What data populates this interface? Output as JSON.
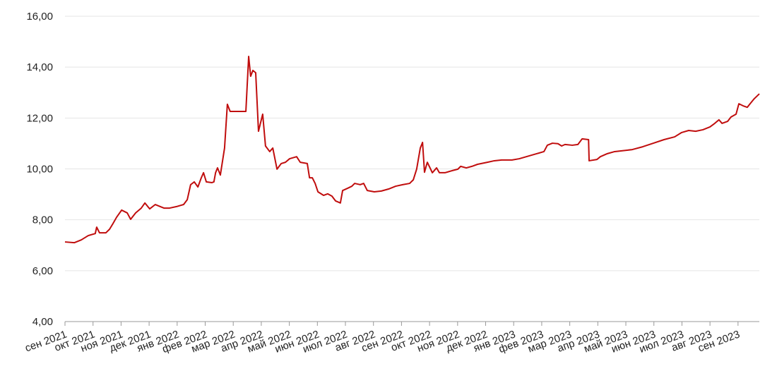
{
  "chart_data": {
    "type": "line",
    "series": [
      {
        "color": "#c00d0d",
        "x": [
          0,
          0.33,
          0.58,
          0.83,
          1.08,
          1.13,
          1.23,
          1.46,
          1.59,
          1.71,
          1.84,
          2.02,
          2.22,
          2.34,
          2.52,
          2.72,
          2.85,
          3.02,
          3.22,
          3.35,
          3.53,
          3.73,
          3.98,
          4.23,
          4.36,
          4.48,
          4.61,
          4.74,
          4.86,
          4.94,
          5.04,
          5.24,
          5.31,
          5.37,
          5.44,
          5.54,
          5.69,
          5.79,
          5.89,
          6.45,
          6.55,
          6.62,
          6.7,
          6.8,
          6.9,
          7.05,
          7.15,
          7.3,
          7.41,
          7.56,
          7.71,
          7.86,
          8.01,
          8.26,
          8.39,
          8.64,
          8.72,
          8.82,
          8.92,
          9.02,
          9.22,
          9.37,
          9.52,
          9.65,
          9.82,
          9.9,
          10.08,
          10.23,
          10.33,
          10.53,
          10.65,
          10.78,
          11.03,
          11.28,
          11.54,
          11.79,
          12.04,
          12.29,
          12.42,
          12.54,
          12.67,
          12.75,
          12.82,
          12.92,
          13.1,
          13.25,
          13.35,
          13.55,
          13.8,
          14.01,
          14.11,
          14.31,
          14.51,
          14.71,
          15.06,
          15.31,
          15.57,
          15.94,
          16.2,
          16.45,
          16.83,
          17.08,
          17.2,
          17.38,
          17.58,
          17.71,
          17.83,
          18.09,
          18.29,
          18.44,
          18.67,
          18.69,
          18.97,
          19.09,
          19.34,
          19.6,
          19.85,
          20.23,
          20.6,
          20.98,
          21.36,
          21.74,
          21.99,
          22.24,
          22.49,
          22.75,
          23.0,
          23.17,
          23.32,
          23.43,
          23.63,
          23.75,
          23.93,
          24.03,
          24.18,
          24.33,
          24.43,
          24.58,
          24.76
        ],
        "values": [
          7.13,
          7.1,
          7.21,
          7.38,
          7.46,
          7.71,
          7.49,
          7.49,
          7.63,
          7.85,
          8.1,
          8.38,
          8.27,
          8.02,
          8.27,
          8.46,
          8.66,
          8.43,
          8.6,
          8.54,
          8.46,
          8.46,
          8.52,
          8.6,
          8.79,
          9.38,
          9.49,
          9.29,
          9.65,
          9.85,
          9.49,
          9.46,
          9.49,
          9.85,
          10.04,
          9.76,
          10.82,
          12.54,
          12.26,
          12.26,
          14.42,
          13.64,
          13.87,
          13.78,
          11.48,
          12.15,
          10.9,
          10.68,
          10.82,
          9.99,
          10.21,
          10.26,
          10.4,
          10.48,
          10.26,
          10.21,
          9.65,
          9.65,
          9.43,
          9.1,
          8.96,
          9.02,
          8.93,
          8.74,
          8.66,
          9.15,
          9.24,
          9.32,
          9.43,
          9.38,
          9.43,
          9.15,
          9.1,
          9.13,
          9.21,
          9.32,
          9.38,
          9.43,
          9.57,
          9.99,
          10.82,
          11.04,
          9.87,
          10.26,
          9.85,
          10.04,
          9.85,
          9.85,
          9.93,
          9.99,
          10.1,
          10.04,
          10.1,
          10.18,
          10.26,
          10.32,
          10.35,
          10.35,
          10.4,
          10.48,
          10.6,
          10.68,
          10.93,
          11.01,
          10.99,
          10.9,
          10.96,
          10.93,
          10.96,
          11.18,
          11.15,
          10.32,
          10.37,
          10.48,
          10.6,
          10.68,
          10.71,
          10.76,
          10.87,
          11.01,
          11.15,
          11.26,
          11.43,
          11.51,
          11.48,
          11.54,
          11.65,
          11.79,
          11.93,
          11.79,
          11.87,
          12.04,
          12.15,
          12.56,
          12.48,
          12.42,
          12.56,
          12.76,
          12.95
        ]
      }
    ],
    "xlim": [
      0,
      24.76
    ],
    "xticks": [
      {
        "value": 0,
        "label": "сен 2021"
      },
      {
        "value": 1,
        "label": "окт 2021"
      },
      {
        "value": 2,
        "label": "ноя 2021"
      },
      {
        "value": 3,
        "label": "дек 2021"
      },
      {
        "value": 4,
        "label": "янв 2022"
      },
      {
        "value": 5,
        "label": "фев 2022"
      },
      {
        "value": 6,
        "label": "мар 2022"
      },
      {
        "value": 7,
        "label": "апр 2022"
      },
      {
        "value": 8,
        "label": "май 2022"
      },
      {
        "value": 9,
        "label": "июн 2022"
      },
      {
        "value": 10,
        "label": "июл 2022"
      },
      {
        "value": 11,
        "label": "авг 2022"
      },
      {
        "value": 12,
        "label": "сен 2022"
      },
      {
        "value": 13,
        "label": "окт 2022"
      },
      {
        "value": 14,
        "label": "ноя 2022"
      },
      {
        "value": 15,
        "label": "дек 2022"
      },
      {
        "value": 16,
        "label": "янв 2023"
      },
      {
        "value": 17,
        "label": "фев 2023"
      },
      {
        "value": 18,
        "label": "мар 2023"
      },
      {
        "value": 19,
        "label": "апр 2023"
      },
      {
        "value": 20,
        "label": "май 2023"
      },
      {
        "value": 21,
        "label": "июн 2023"
      },
      {
        "value": 22,
        "label": "июл 2023"
      },
      {
        "value": 23,
        "label": "авг 2023"
      },
      {
        "value": 24,
        "label": "сен 2023"
      }
    ],
    "ylim": [
      4,
      16
    ],
    "yticks": [
      {
        "value": 4,
        "label": "4,00"
      },
      {
        "value": 6,
        "label": "6,00"
      },
      {
        "value": 8,
        "label": "8,00"
      },
      {
        "value": 10,
        "label": "10,00"
      },
      {
        "value": 12,
        "label": "12,00"
      },
      {
        "value": 14,
        "label": "14,00"
      },
      {
        "value": 16,
        "label": "16,00"
      }
    ],
    "grid": true
  }
}
